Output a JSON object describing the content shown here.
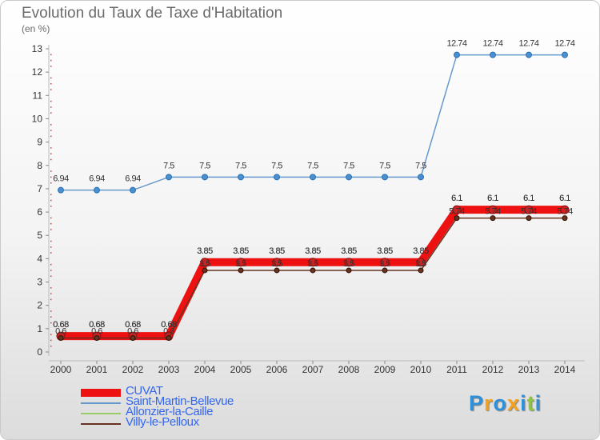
{
  "header": {
    "title": "Evolution du Taux de Taxe d'Habitation",
    "unit": "(en %)"
  },
  "chart_data": {
    "type": "line",
    "title": "Evolution du Taux de Taxe d'Habitation",
    "ylabel": "(en %)",
    "xlabel": "",
    "x": [
      "2000",
      "2001",
      "2002",
      "2003",
      "2004",
      "2005",
      "2006",
      "2007",
      "2008",
      "2009",
      "2010",
      "2011",
      "2012",
      "2013",
      "2014"
    ],
    "yticks": [
      "0",
      "1",
      "2",
      "3",
      "4",
      "5",
      "6",
      "7",
      "8",
      "9",
      "10",
      "11",
      "12",
      "13"
    ],
    "ylim": [
      0,
      13
    ],
    "grid": false,
    "legend_position": "bottom-left",
    "series": [
      {
        "name": "CUVAT",
        "color": "#ee1111",
        "values": [
          0.68,
          0.68,
          0.68,
          0.68,
          3.85,
          3.85,
          3.85,
          3.85,
          3.85,
          3.85,
          3.85,
          6.1,
          6.1,
          6.1,
          6.1
        ],
        "labels": [
          "0.68",
          "0.68",
          "0.68",
          "0.68",
          "3.85",
          "3.85",
          "3.85",
          "3.85",
          "3.85",
          "3.85",
          "3.85",
          "6.1",
          "6.1",
          "6.1",
          "6.1"
        ]
      },
      {
        "name": "Saint-Martin-Bellevue",
        "color": "#6699cc",
        "values": [
          6.94,
          6.94,
          6.94,
          7.5,
          7.5,
          7.5,
          7.5,
          7.5,
          7.5,
          7.5,
          7.5,
          12.74,
          12.74,
          12.74,
          12.74
        ],
        "labels": [
          "6.94",
          "6.94",
          "6.94",
          "7.5",
          "7.5",
          "7.5",
          "7.5",
          "7.5",
          "7.5",
          "7.5",
          "7.5",
          "12.74",
          "12.74",
          "12.74",
          "12.74"
        ]
      },
      {
        "name": "Allonzier-la-Caille",
        "color": "#99cc66",
        "values": [
          0.68,
          0.68,
          0.68,
          0.68,
          3.85,
          3.85,
          3.85,
          3.85,
          3.85,
          3.85,
          3.85,
          6.1,
          6.1,
          6.1,
          6.1
        ],
        "labels": [
          "0.68",
          "0.68",
          "0.68",
          "0.68",
          "3.85",
          "3.85",
          "3.85",
          "3.85",
          "3.85",
          "3.85",
          "3.85",
          "6.1",
          "6.1",
          "6.1",
          "6.1"
        ]
      },
      {
        "name": "Villy-le-Pelloux",
        "color": "#663322",
        "values": [
          0.6,
          0.6,
          0.6,
          0.6,
          3.5,
          3.5,
          3.5,
          3.5,
          3.5,
          3.5,
          3.5,
          5.74,
          5.74,
          5.74,
          5.74
        ],
        "labels": [
          "0.6",
          "0.6",
          "0.6",
          "0.6",
          "3.5",
          "3.5",
          "3.5",
          "3.5",
          "3.5",
          "3.5",
          "3.5",
          "5.74",
          "5.74",
          "5.74",
          "5.74"
        ]
      }
    ]
  },
  "logo": {
    "letters": [
      "P",
      "r",
      "o",
      "x",
      "i",
      "t",
      "i"
    ],
    "colors": [
      "#2f8fd8",
      "#f4a21e",
      "#2f8fd8",
      "#f4a21e",
      "#2f8fd8",
      "#8cc63f",
      "#2f8fd8"
    ]
  }
}
